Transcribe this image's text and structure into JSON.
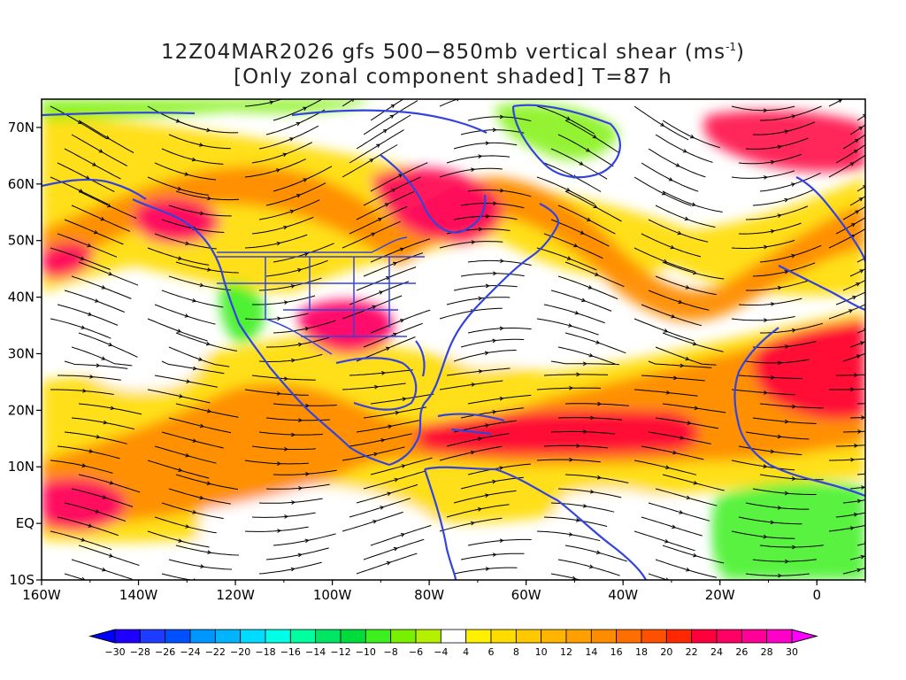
{
  "title": {
    "line1_prefix": "12Z04MAR2026 gfs 500−850mb vertical shear (ms",
    "line1_sup": "-1",
    "line1_suffix": ")",
    "line2": "[Only zonal component shaded] T=87 h"
  },
  "map": {
    "lon_range": [
      -160,
      10
    ],
    "lat_range": [
      -10,
      75
    ],
    "lat_ticks": [
      "70N",
      "60N",
      "50N",
      "40N",
      "30N",
      "20N",
      "10N",
      "EQ",
      "10S"
    ],
    "lat_tick_values": [
      70,
      60,
      50,
      40,
      30,
      20,
      10,
      0,
      -10
    ],
    "lon_ticks": [
      "160W",
      "140W",
      "120W",
      "100W",
      "80W",
      "60W",
      "40W",
      "20W",
      "0"
    ],
    "lon_tick_values": [
      -160,
      -140,
      -120,
      -100,
      -80,
      -60,
      -40,
      -20,
      0
    ],
    "coastline_color": "#3344dd",
    "streamline_color": "#000000"
  },
  "colorbar": {
    "labels": [
      "-30",
      "-28",
      "-26",
      "-24",
      "-22",
      "-20",
      "-18",
      "-16",
      "-14",
      "-12",
      "-10",
      "-8",
      "-6",
      "-4",
      "4",
      "6",
      "8",
      "10",
      "12",
      "14",
      "16",
      "18",
      "20",
      "22",
      "24",
      "26",
      "28",
      "30"
    ],
    "colors": [
      "#1e00ff",
      "#1e3cff",
      "#0050ff",
      "#0096ff",
      "#00b4ff",
      "#00dcff",
      "#00ffe6",
      "#00ffa0",
      "#00e664",
      "#00dc3c",
      "#3cf01e",
      "#78f000",
      "#b4f000",
      "#ffffff",
      "#fff000",
      "#ffdc00",
      "#ffc800",
      "#ffb400",
      "#ffa000",
      "#ff8c00",
      "#ff6e00",
      "#ff5000",
      "#ff2800",
      "#ff003c",
      "#ff0064",
      "#ff0096",
      "#ff00c8"
    ],
    "under_color": "#0000ff",
    "over_color": "#ff00ff"
  }
}
